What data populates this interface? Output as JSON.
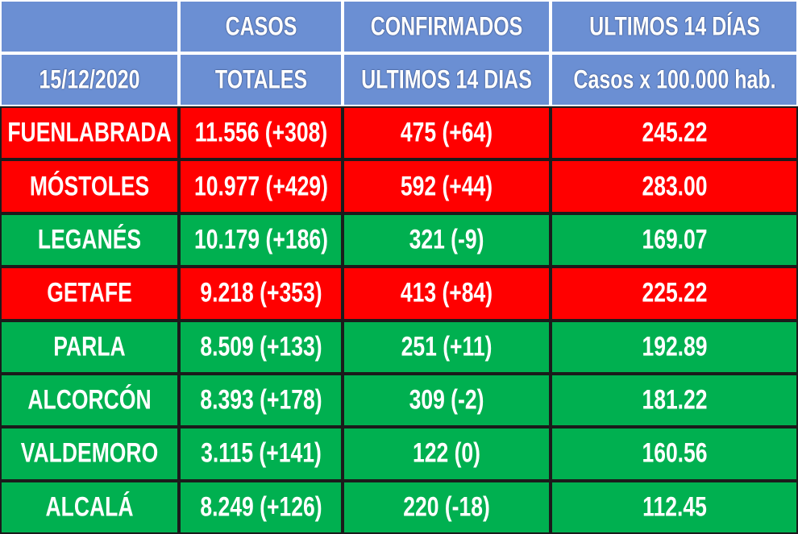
{
  "header": {
    "rows": [
      [
        "",
        "CASOS",
        "CONFIRMADOS",
        "ULTIMOS 14 DÍAS"
      ],
      [
        "15/12/2020",
        "TOTALES",
        "ULTIMOS 14 DIAS",
        "Casos x 100.000 hab."
      ]
    ]
  },
  "table": {
    "rows": [
      {
        "color": "#ff0000",
        "cells": [
          "FUENLABRADA",
          "11.556 (+308)",
          "475 (+64)",
          "245.22"
        ]
      },
      {
        "color": "#ff0000",
        "cells": [
          "MÓSTOLES",
          "10.977 (+429)",
          "592 (+44)",
          "283.00"
        ]
      },
      {
        "color": "#00b050",
        "cells": [
          "LEGANÉS",
          "10.179 (+186)",
          "321 (-9)",
          "169.07"
        ]
      },
      {
        "color": "#ff0000",
        "cells": [
          "GETAFE",
          "9.218 (+353)",
          "413 (+84)",
          "225.22"
        ]
      },
      {
        "color": "#00b050",
        "cells": [
          "PARLA",
          "8.509 (+133)",
          "251 (+11)",
          "192.89"
        ]
      },
      {
        "color": "#00b050",
        "cells": [
          "ALCORCÓN",
          "8.393 (+178)",
          "309 (-2)",
          "181.22"
        ]
      },
      {
        "color": "#00b050",
        "cells": [
          "VALDEMORO",
          "3.115 (+141)",
          "122 (0)",
          "160.56"
        ]
      },
      {
        "color": "#00b050",
        "cells": [
          "ALCALÁ",
          "8.249 (+126)",
          "220 (-18)",
          "112.45"
        ]
      }
    ]
  }
}
